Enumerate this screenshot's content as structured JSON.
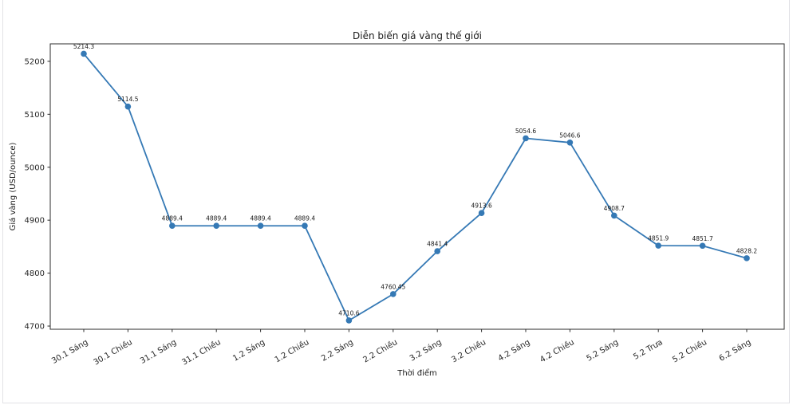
{
  "chart_data": {
    "type": "line",
    "title": "Diễn biến giá vàng thế giới",
    "xlabel": "Thời điểm",
    "ylabel": "Giá vàng (USD/ounce)",
    "categories": [
      "30.1 Sáng",
      "30.1 Chiều",
      "31.1 Sáng",
      "31.1 Chiều",
      "1.2 Sáng",
      "1.2 Chiều",
      "2.2 Sáng",
      "2.2 Chiều",
      "3.2 Sáng",
      "3.2 Chiều",
      "4.2 Sáng",
      "4.2 Chiều",
      "5.2 Sáng",
      "5.2 Trưa",
      "5.2 Chiều",
      "6.2 Sáng"
    ],
    "values": [
      5214.3,
      5114.5,
      4889.4,
      4889.4,
      4889.4,
      4889.4,
      4710.6,
      4760.45,
      4841.4,
      4913.6,
      5054.6,
      5046.6,
      4908.7,
      4851.9,
      4851.7,
      4828.2
    ],
    "point_labels": [
      "5214.3",
      "5114.5",
      "4889.4",
      "4889.4",
      "4889.4",
      "4889.4",
      "4710.6",
      "4760.45",
      "4841.4",
      "4913.6",
      "5054.6",
      "5046.6",
      "4908.7",
      "4851.9",
      "4851.7",
      "4828.2"
    ],
    "y_ticks": [
      4700,
      4800,
      4900,
      5000,
      5100,
      5200
    ],
    "ylim": [
      4694,
      5233
    ],
    "grid": false,
    "legend_position": "none",
    "line_color": "#3579b5",
    "marker_color": "#3579b5",
    "spine_color": "#2b2b2b",
    "tick_text_color": "#262626",
    "x_tick_rotation_deg": 30
  }
}
